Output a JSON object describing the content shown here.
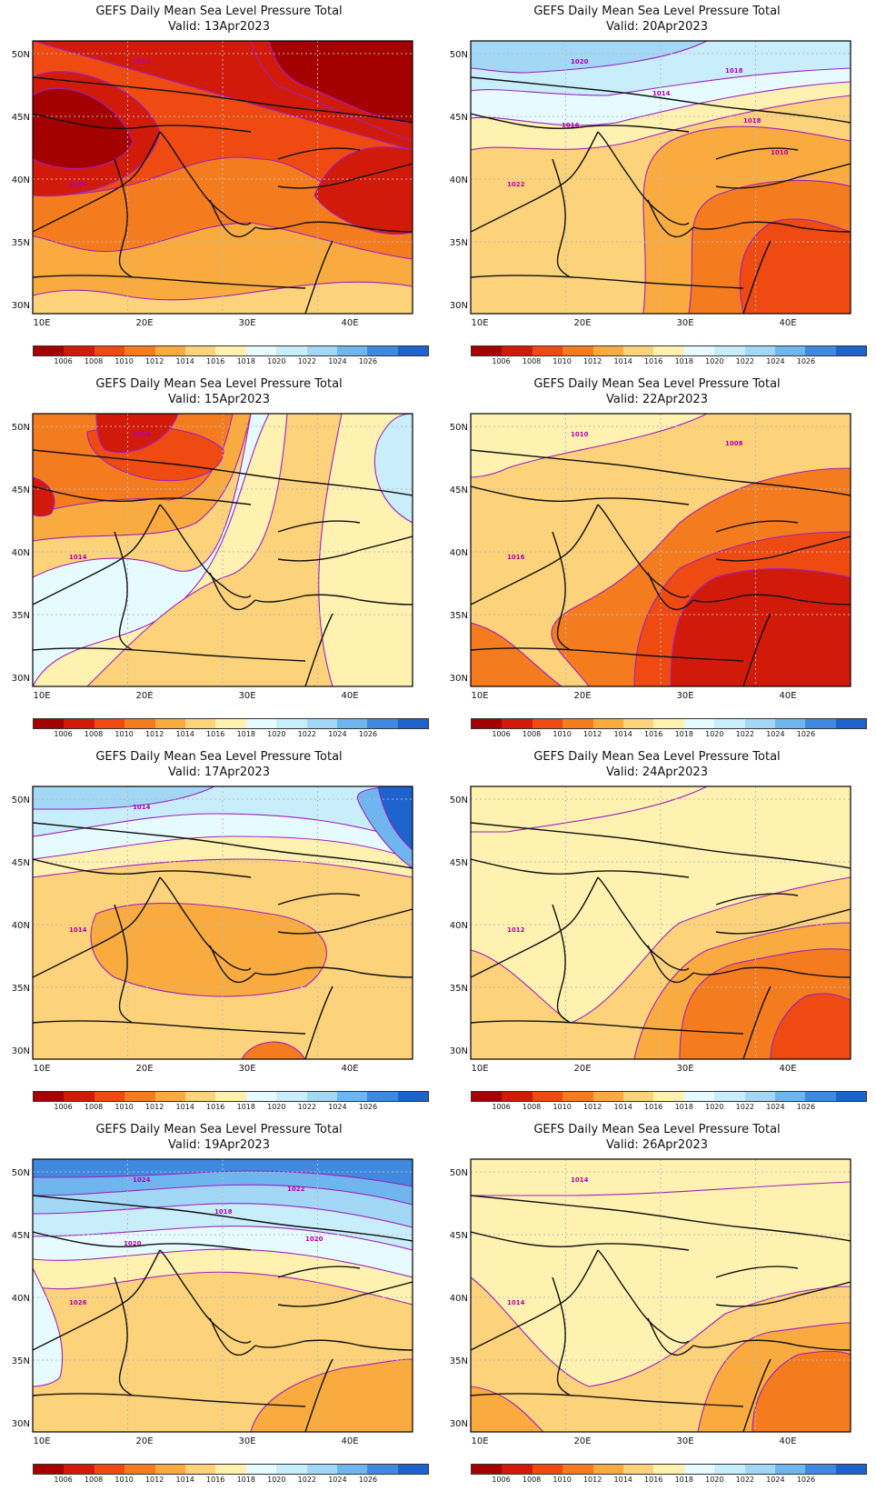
{
  "title": "GEFS Daily Mean Sea Level Pressure Total",
  "panels": [
    {
      "valid": "Valid: 13Apr2023",
      "labels": [
        "1008",
        "1012"
      ],
      "scheme": "low"
    },
    {
      "valid": "Valid: 20Apr2023",
      "labels": [
        "1022",
        "1020",
        "1018",
        "1016",
        "1014",
        "1018",
        "1010"
      ],
      "scheme": "mixed-high-north"
    },
    {
      "valid": "Valid: 15Apr2023",
      "labels": [
        "1014",
        "1016"
      ],
      "scheme": "mixed-low-north"
    },
    {
      "valid": "Valid: 22Apr2023",
      "labels": [
        "1016",
        "1010",
        "1008"
      ],
      "scheme": "mixed-low-south"
    },
    {
      "valid": "Valid: 17Apr2023",
      "labels": [
        "1014",
        "1014"
      ],
      "scheme": "high-north"
    },
    {
      "valid": "Valid: 24Apr2023",
      "labels": [
        "1012"
      ],
      "scheme": "mild-low-south"
    },
    {
      "valid": "Valid: 19Apr2023",
      "labels": [
        "1026",
        "1024",
        "1022",
        "1020",
        "1018",
        "1020"
      ],
      "scheme": "strong-high-north"
    },
    {
      "valid": "Valid: 26Apr2023",
      "labels": [
        "1014",
        "1014"
      ],
      "scheme": "flat"
    }
  ],
  "axes": {
    "lat_ticks": [
      "50N",
      "45N",
      "40N",
      "35N",
      "30N"
    ],
    "lon_ticks": [
      "10E",
      "20E",
      "30E",
      "40E"
    ]
  },
  "colorbar": {
    "labels": [
      "1006",
      "1008",
      "1010",
      "1012",
      "1014",
      "1016",
      "1018",
      "1020",
      "1022",
      "1024",
      "1026"
    ],
    "colors": [
      "#a50000",
      "#d21a0a",
      "#ee4a12",
      "#f57b1f",
      "#f9ab3f",
      "#fcd27a",
      "#fff2b0",
      "#e6fbff",
      "#c8eefc",
      "#a2d8f5",
      "#6fb6ee",
      "#3f8ae0",
      "#1e62cc"
    ]
  }
}
